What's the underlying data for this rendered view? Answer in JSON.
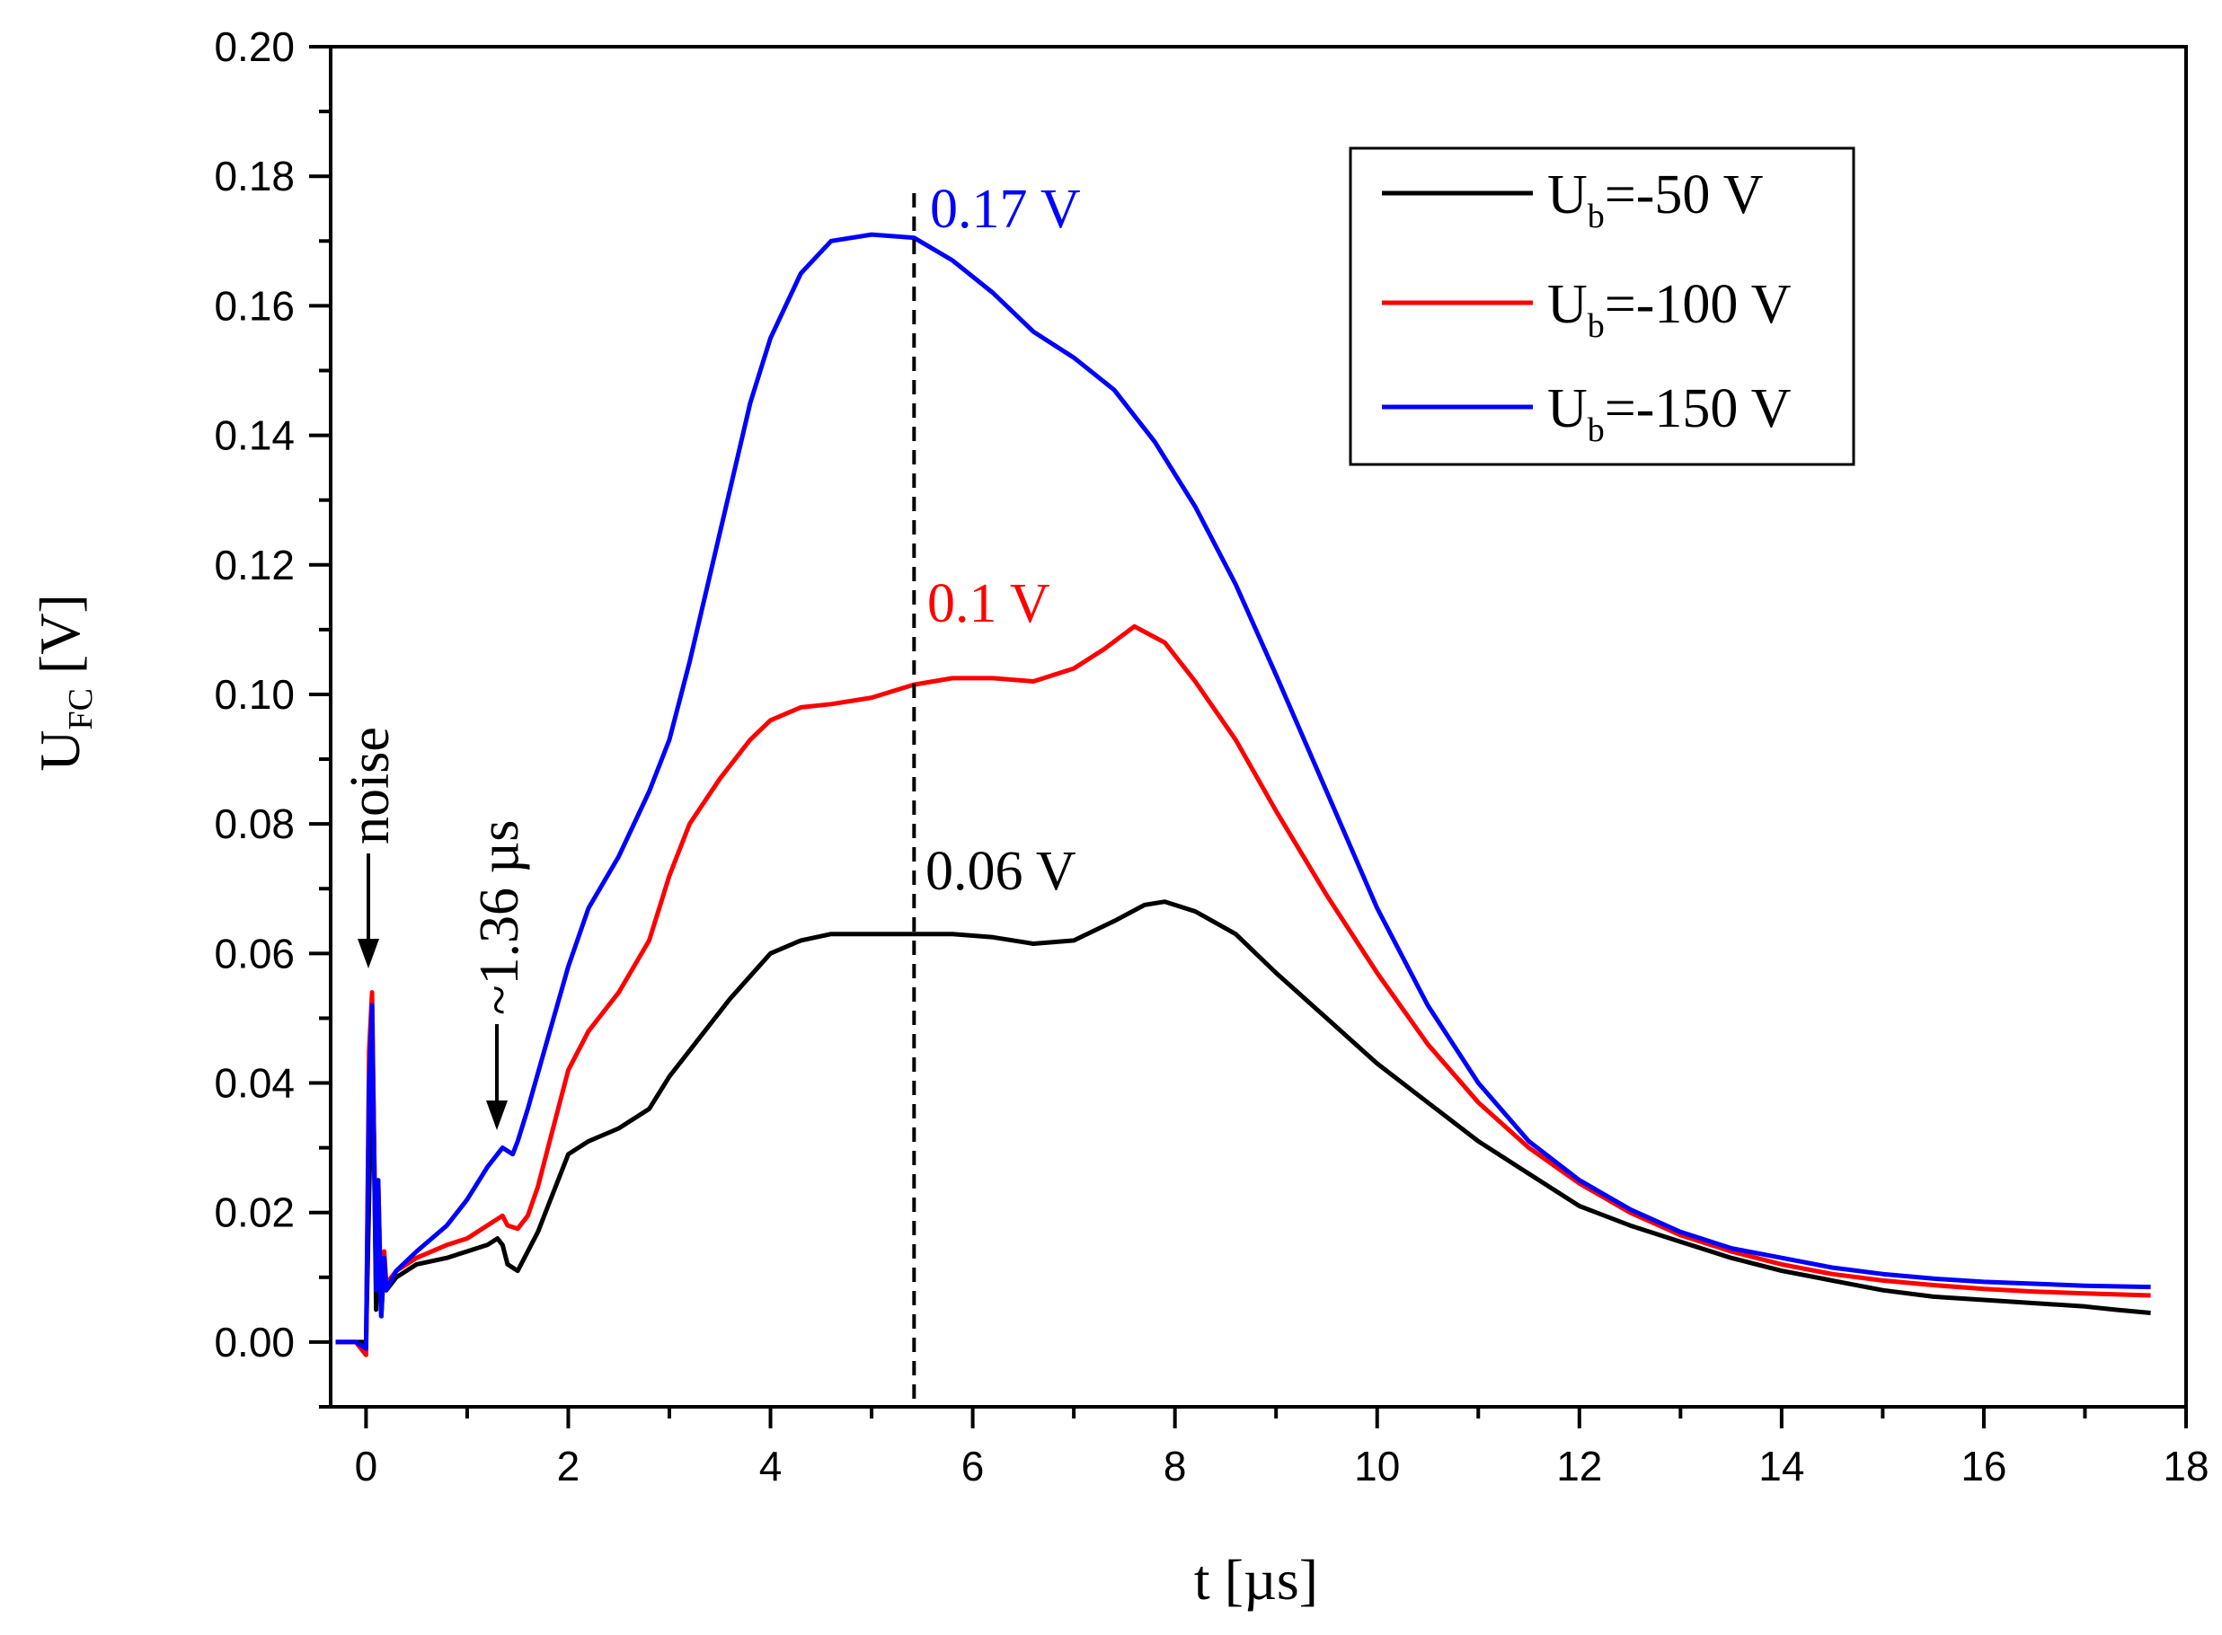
{
  "chart_data": {
    "type": "line",
    "xlabel": "t [µs]",
    "ylabel_main": "U",
    "ylabel_sub": "FC",
    "ylabel_unit": "[V]",
    "xlim": [
      -0.35,
      18
    ],
    "ylim": [
      -0.01,
      0.2
    ],
    "x_ticks": [
      0,
      2,
      4,
      6,
      8,
      10,
      12,
      14,
      16,
      18
    ],
    "x_tick_labels": [
      "0",
      "2",
      "4",
      "6",
      "8",
      "10",
      "12",
      "14",
      "16",
      "18"
    ],
    "y_ticks": [
      0.0,
      0.02,
      0.04,
      0.06,
      0.08,
      0.1,
      0.12,
      0.14,
      0.16,
      0.18,
      0.2
    ],
    "y_tick_labels": [
      "0.00",
      "0.02",
      "0.04",
      "0.06",
      "0.08",
      "0.10",
      "0.12",
      "0.14",
      "0.16",
      "0.18",
      "0.20"
    ],
    "x_minor_step": 1,
    "y_minor_step": 0.01,
    "grid": false,
    "legend_position": "top-right",
    "vline_x": 5.42,
    "series": [
      {
        "name": "Ub=-50 V",
        "legend_main": "U",
        "legend_sub": "b",
        "legend_rest": "=-50 V",
        "color": "#000000",
        "x": [
          -0.3,
          -0.1,
          0.0,
          0.04,
          0.06,
          0.08,
          0.1,
          0.12,
          0.15,
          0.18,
          0.2,
          0.3,
          0.5,
          0.8,
          1.0,
          1.2,
          1.3,
          1.35,
          1.4,
          1.5,
          1.6,
          1.7,
          1.8,
          1.9,
          2.0,
          2.2,
          2.5,
          2.8,
          3.0,
          3.3,
          3.6,
          4.0,
          4.3,
          4.6,
          5.0,
          5.42,
          5.8,
          6.2,
          6.6,
          7.0,
          7.4,
          7.7,
          7.9,
          8.2,
          8.6,
          9.0,
          9.5,
          10.0,
          10.5,
          11.0,
          11.5,
          12.0,
          12.5,
          13.0,
          13.5,
          14.0,
          14.5,
          15.0,
          15.5,
          16.0,
          16.5,
          17.0,
          17.3,
          17.65
        ],
        "y": [
          0.0,
          0.0,
          0.0,
          0.03,
          0.05,
          0.03,
          0.005,
          0.02,
          0.004,
          0.012,
          0.008,
          0.01,
          0.012,
          0.013,
          0.014,
          0.015,
          0.016,
          0.015,
          0.012,
          0.011,
          0.014,
          0.017,
          0.021,
          0.025,
          0.029,
          0.031,
          0.033,
          0.036,
          0.041,
          0.047,
          0.053,
          0.06,
          0.062,
          0.063,
          0.063,
          0.063,
          0.063,
          0.0625,
          0.0615,
          0.062,
          0.065,
          0.0675,
          0.068,
          0.0665,
          0.063,
          0.057,
          0.05,
          0.043,
          0.037,
          0.031,
          0.026,
          0.021,
          0.018,
          0.0155,
          0.013,
          0.011,
          0.0095,
          0.008,
          0.007,
          0.0065,
          0.006,
          0.0055,
          0.005,
          0.0045
        ]
      },
      {
        "name": "Ub=-100 V",
        "legend_main": "U",
        "legend_sub": "b",
        "legend_rest": "=-100 V",
        "color": "#ff0000",
        "x": [
          -0.3,
          -0.1,
          0.0,
          0.03,
          0.06,
          0.08,
          0.1,
          0.12,
          0.15,
          0.18,
          0.2,
          0.3,
          0.5,
          0.8,
          1.0,
          1.2,
          1.35,
          1.4,
          1.5,
          1.6,
          1.7,
          1.8,
          1.9,
          2.0,
          2.2,
          2.5,
          2.8,
          3.0,
          3.2,
          3.5,
          3.8,
          4.0,
          4.3,
          4.6,
          5.0,
          5.42,
          5.8,
          6.2,
          6.6,
          7.0,
          7.3,
          7.6,
          7.9,
          8.2,
          8.6,
          9.0,
          9.5,
          10.0,
          10.5,
          11.0,
          11.5,
          12.0,
          12.5,
          13.0,
          13.5,
          14.0,
          14.5,
          15.0,
          15.5,
          16.0,
          16.5,
          17.0,
          17.65
        ],
        "y": [
          0.0,
          0.0,
          -0.002,
          0.045,
          0.054,
          0.03,
          0.01,
          0.025,
          0.005,
          0.014,
          0.009,
          0.011,
          0.013,
          0.015,
          0.016,
          0.018,
          0.0195,
          0.018,
          0.0175,
          0.0195,
          0.024,
          0.03,
          0.036,
          0.042,
          0.048,
          0.054,
          0.062,
          0.072,
          0.08,
          0.087,
          0.093,
          0.096,
          0.098,
          0.0985,
          0.0995,
          0.1015,
          0.1025,
          0.1025,
          0.102,
          0.104,
          0.107,
          0.1105,
          0.108,
          0.102,
          0.093,
          0.082,
          0.069,
          0.057,
          0.046,
          0.037,
          0.03,
          0.0245,
          0.02,
          0.0165,
          0.014,
          0.012,
          0.0105,
          0.0095,
          0.0088,
          0.0082,
          0.0078,
          0.0075,
          0.0072
        ]
      },
      {
        "name": "Ub=-150 V",
        "legend_main": "U",
        "legend_sub": "b",
        "legend_rest": "=-150 V",
        "color": "#0000ff",
        "x": [
          -0.3,
          -0.1,
          0.0,
          0.03,
          0.06,
          0.08,
          0.1,
          0.12,
          0.15,
          0.18,
          0.2,
          0.3,
          0.5,
          0.8,
          1.0,
          1.2,
          1.35,
          1.45,
          1.5,
          1.6,
          1.8,
          2.0,
          2.2,
          2.5,
          2.8,
          3.0,
          3.2,
          3.5,
          3.8,
          4.0,
          4.3,
          4.6,
          5.0,
          5.42,
          5.8,
          6.2,
          6.6,
          7.0,
          7.4,
          7.8,
          8.2,
          8.6,
          9.0,
          9.5,
          10.0,
          10.5,
          11.0,
          11.5,
          12.0,
          12.5,
          13.0,
          13.5,
          14.0,
          14.5,
          15.0,
          15.5,
          16.0,
          16.5,
          17.0,
          17.65
        ],
        "y": [
          0.0,
          0.0,
          -0.001,
          0.04,
          0.052,
          0.028,
          0.008,
          0.025,
          0.004,
          0.013,
          0.008,
          0.011,
          0.014,
          0.018,
          0.022,
          0.027,
          0.03,
          0.029,
          0.031,
          0.036,
          0.047,
          0.058,
          0.067,
          0.075,
          0.085,
          0.093,
          0.105,
          0.125,
          0.145,
          0.155,
          0.165,
          0.17,
          0.171,
          0.1705,
          0.167,
          0.162,
          0.156,
          0.152,
          0.147,
          0.139,
          0.129,
          0.117,
          0.103,
          0.085,
          0.067,
          0.052,
          0.04,
          0.031,
          0.025,
          0.0205,
          0.017,
          0.0145,
          0.013,
          0.0115,
          0.0105,
          0.0098,
          0.0093,
          0.009,
          0.0087,
          0.0085
        ]
      }
    ],
    "annotations": {
      "peak_blue": "0.17 V",
      "peak_red": "0.1 V",
      "peak_black": "0.06 V",
      "noise": "noise",
      "time_marker": "~1.36 µs"
    }
  }
}
